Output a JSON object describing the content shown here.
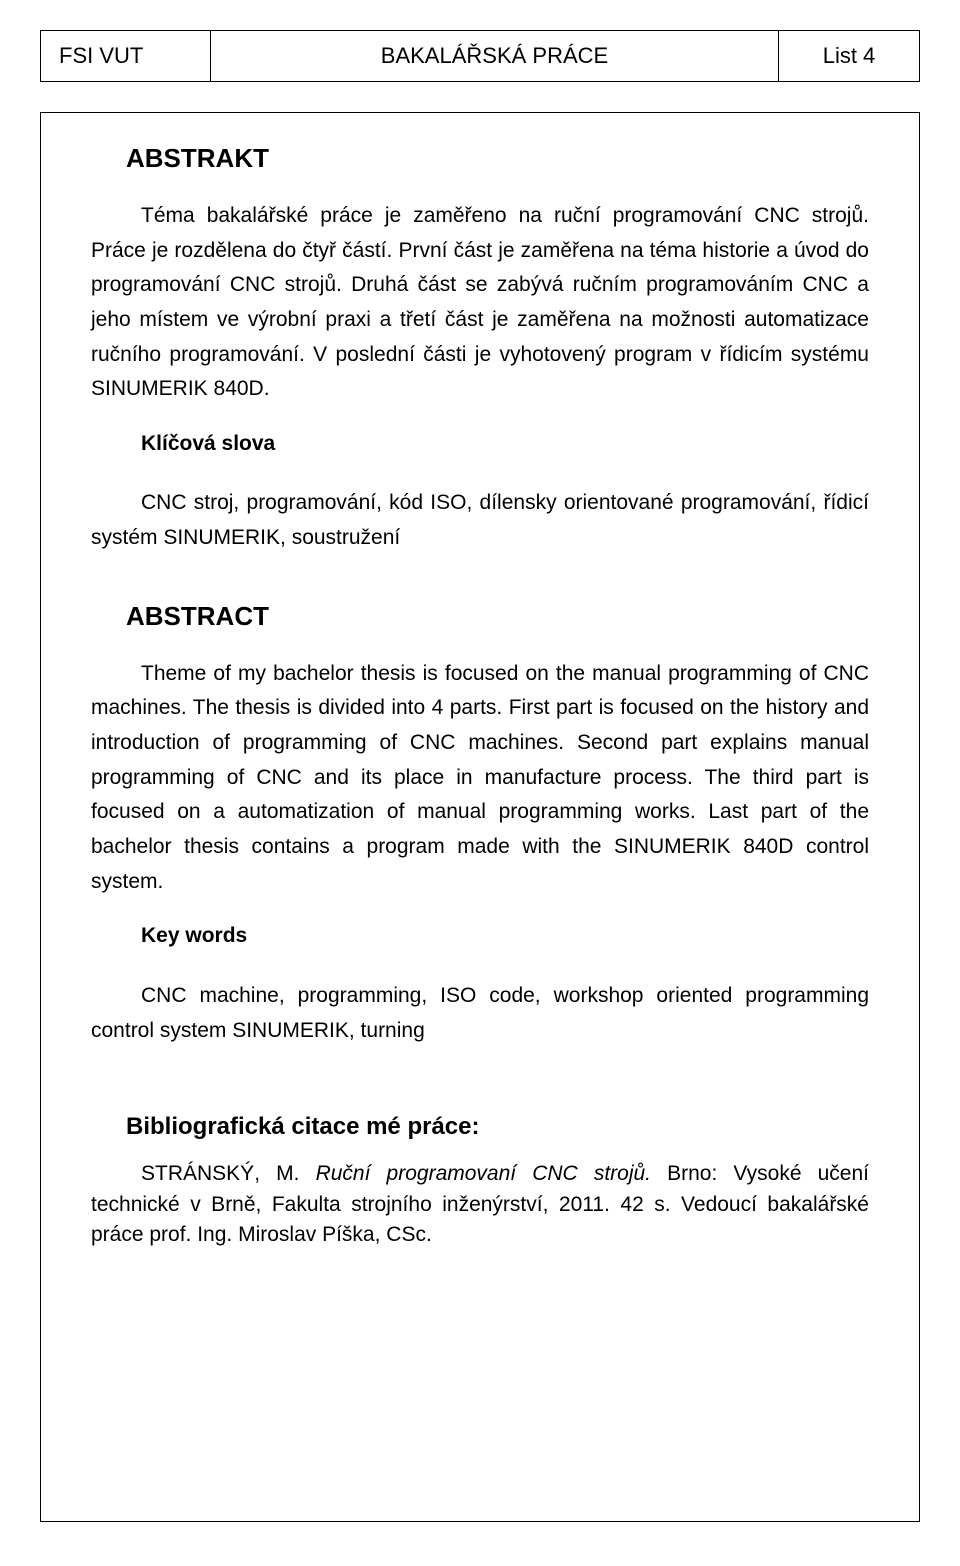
{
  "header": {
    "left": "FSI VUT",
    "center": "BAKALÁŘSKÁ PRÁCE",
    "right": "List 4"
  },
  "abstrakt": {
    "title": "ABSTRAKT",
    "body": "Téma bakalářské práce je zaměřeno na ruční programování CNC strojů. Práce je rozdělena do čtyř částí. První část je zaměřena na téma historie a úvod do programování CNC strojů. Druhá část se zabývá ručním programováním CNC a jeho místem ve výrobní praxi a třetí část je zaměřena na možnosti automatizace ručního programování. V poslední části je vyhotovený program v řídicím systému SINUMERIK 840D.",
    "keywords_label": "Klíčová slova",
    "keywords": "CNC stroj, programování, kód ISO,  dílensky orientované programování, řídicí systém SINUMERIK, soustružení"
  },
  "abstract": {
    "title": "ABSTRACT",
    "body": "Theme of my bachelor thesis is focused on the manual programming of CNC machines. The thesis is divided into 4 parts. First part is focused on the history and introduction of programming of CNC machines. Second part explains manual programming of CNC and its place in manufacture process. The third part is focused on a automatization of manual programming works. Last part of the bachelor thesis contains a program made with the SINUMERIK 840D control system.",
    "keywords_label": "Key words",
    "keywords": "CNC machine, programming, ISO code, workshop oriented programming control system SINUMERIK, turning"
  },
  "citation": {
    "title": "Bibliografická citace mé práce:",
    "author": "STRÁNSKÝ, M. ",
    "work_title": "Ruční programovaní CNC strojů. ",
    "rest": "Brno: Vysoké učení technické v Brně, Fakulta strojního inženýrství, 2011. 42 s. Vedoucí bakalářské práce prof. Ing. Miroslav Píška, CSc."
  }
}
